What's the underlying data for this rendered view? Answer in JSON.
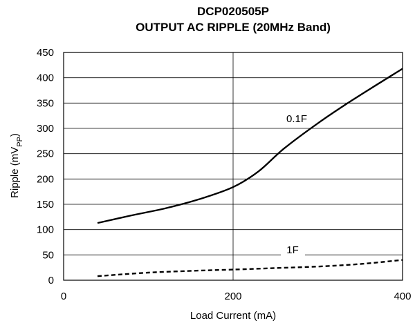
{
  "chart_data": {
    "type": "line",
    "title": "DCP020505P",
    "subtitle": "OUTPUT AC RIPPLE (20MHz Band)",
    "xlabel": "Load Current (mA)",
    "ylabel": {
      "prefix": "Ripple (mV",
      "subscript": "PP",
      "suffix": ")"
    },
    "xlim": [
      0,
      400
    ],
    "ylim": [
      0,
      450
    ],
    "xticks": [
      "0",
      "200",
      "400"
    ],
    "yticks": [
      "0",
      "50",
      "100",
      "150",
      "200",
      "250",
      "300",
      "350",
      "400",
      "450"
    ],
    "grid": {
      "horizontal_every": 50,
      "vertical_at": [
        200
      ]
    },
    "series": [
      {
        "name": "0.1F",
        "style": "solid",
        "x": [
          40,
          80,
          120,
          160,
          200,
          230,
          260,
          300,
          340,
          400
        ],
        "y": [
          113,
          128,
          142,
          160,
          184,
          215,
          260,
          310,
          355,
          418
        ]
      },
      {
        "name": "1F",
        "style": "dashed",
        "x": [
          40,
          100,
          160,
          200,
          250,
          300,
          350,
          400
        ],
        "y": [
          8,
          15,
          19,
          21,
          24,
          27,
          32,
          40
        ]
      }
    ]
  }
}
